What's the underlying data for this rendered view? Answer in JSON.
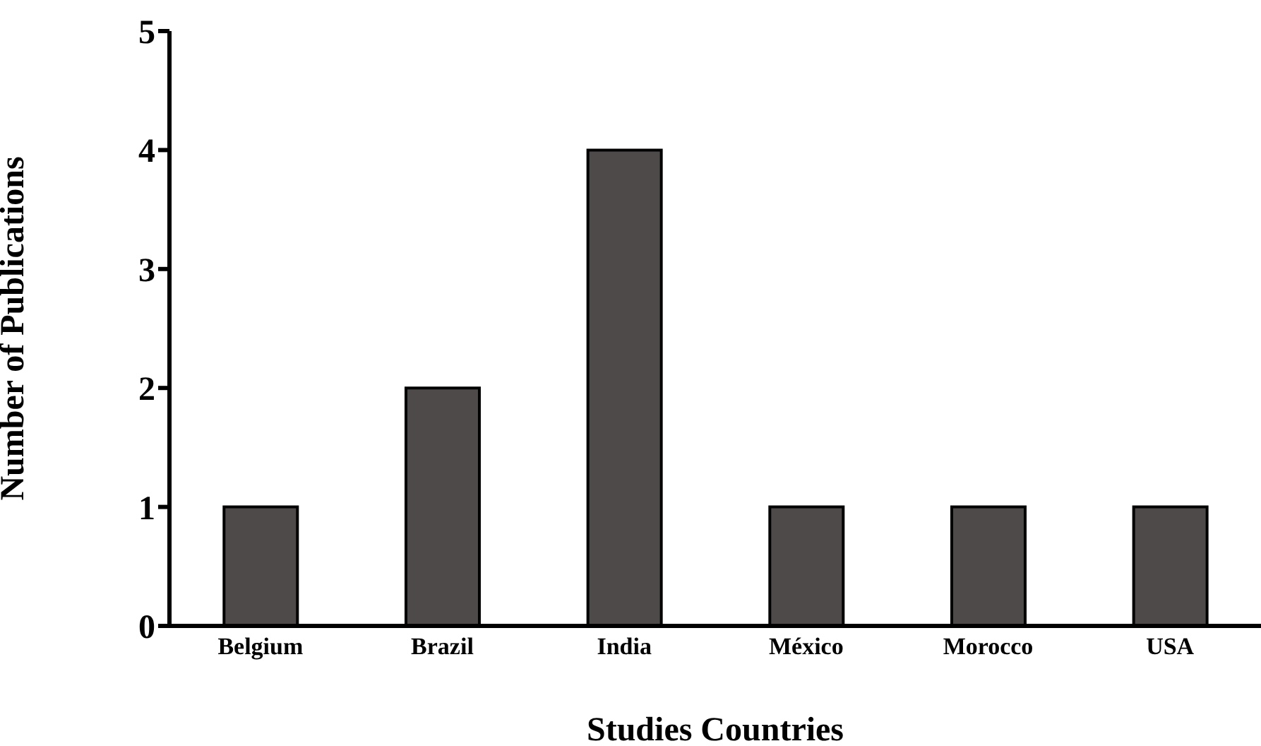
{
  "chart_data": {
    "type": "bar",
    "xlabel": "Studies Countries",
    "ylabel": "Number of Publications",
    "categories": [
      "Belgium",
      "Brazil",
      "India",
      "México",
      "Morocco",
      "USA"
    ],
    "values": [
      1,
      2,
      4,
      1,
      1,
      1
    ],
    "color": "#4e4a4a",
    "ylim": [
      0,
      5
    ],
    "yticks": [
      0,
      1,
      2,
      3,
      4,
      5
    ],
    "grid": false,
    "legend": false
  }
}
